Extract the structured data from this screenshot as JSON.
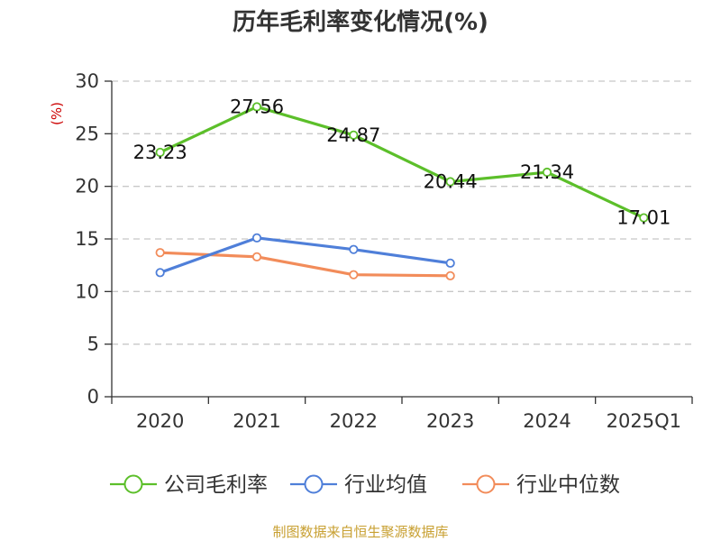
{
  "chart_data": {
    "type": "line",
    "title": "历年毛利率变化情况(%)",
    "ylabel": "(%)",
    "categories": [
      "2020",
      "2021",
      "2022",
      "2023",
      "2024",
      "2025Q1"
    ],
    "ylim": [
      0,
      30
    ],
    "yticks": [
      0,
      5,
      10,
      15,
      20,
      25,
      30
    ],
    "grid": true,
    "legend_position": "bottom",
    "series": [
      {
        "name": "公司毛利率",
        "color": "#5cbf2a",
        "values": [
          23.23,
          27.56,
          24.87,
          20.44,
          21.34,
          17.01
        ],
        "labels": [
          "23.23",
          "27.56",
          "24.87",
          "20.44",
          "21.34",
          "17.01"
        ]
      },
      {
        "name": "行业均值",
        "color": "#4f7fd9",
        "values": [
          11.8,
          15.1,
          14.0,
          12.7,
          null,
          null
        ]
      },
      {
        "name": "行业中位数",
        "color": "#f28c5a",
        "values": [
          13.7,
          13.3,
          11.6,
          11.5,
          null,
          null
        ]
      }
    ],
    "source": "制图数据来自恒生聚源数据库"
  }
}
